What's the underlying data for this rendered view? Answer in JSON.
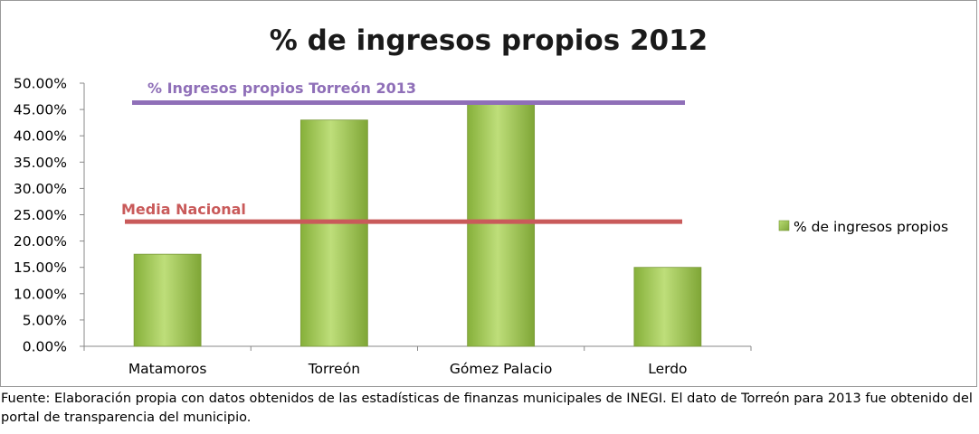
{
  "chart_data": {
    "type": "bar",
    "title": "% de ingresos propios 2012",
    "categories": [
      "Matamoros",
      "Torreón",
      "Gómez Palacio",
      "Lerdo"
    ],
    "series": [
      {
        "name": "% de ingresos propios",
        "values": [
          17.5,
          43.0,
          46.0,
          15.0
        ]
      }
    ],
    "ylim": [
      0,
      50
    ],
    "yticks": [
      "0.00%",
      "5.00%",
      "10.00%",
      "15.00%",
      "20.00%",
      "25.00%",
      "30.00%",
      "35.00%",
      "40.00%",
      "45.00%",
      "50.00%"
    ],
    "reference_lines": [
      {
        "label": "% Ingresos propios Torreón 2013",
        "value": 46.3,
        "color": "#8f6fb8"
      },
      {
        "label": "Media Nacional",
        "value": 23.7,
        "color": "#c95a5a"
      }
    ],
    "legend_position": "right",
    "grid": false,
    "bar_color": "#9bc548"
  },
  "caption": {
    "line1": "Fuente: Elaboración propia con datos obtenidos de las estadísticas de finanzas municipales de INEGI. El dato de Torreón para 2013 fue obtenido del",
    "line2": "portal de transparencia del municipio."
  }
}
